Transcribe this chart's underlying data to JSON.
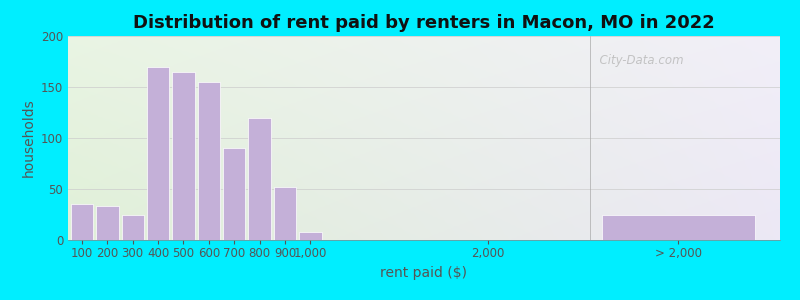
{
  "title": "Distribution of rent paid by renters in Macon, MO in 2022",
  "xlabel": "rent paid ($)",
  "ylabel": "households",
  "bar_color": "#c4b0d8",
  "bar_edge_color": "#ffffff",
  "background_outer": "#00eeff",
  "ylim": [
    0,
    200
  ],
  "yticks": [
    0,
    50,
    100,
    150,
    200
  ],
  "bar_labels": [
    "100",
    "200",
    "300",
    "400",
    "500",
    "600",
    "700",
    "800",
    "900",
    "1,000",
    "2,000",
    "> 2,000"
  ],
  "bar_values": [
    35,
    33,
    25,
    170,
    165,
    155,
    90,
    120,
    52,
    8,
    0,
    25
  ],
  "watermark": "City-Data.com",
  "title_fontsize": 13,
  "axis_fontsize": 10,
  "tick_fontsize": 8.5,
  "bg_left_color": "#e6f5e0",
  "bg_right_color": "#eeeef8"
}
